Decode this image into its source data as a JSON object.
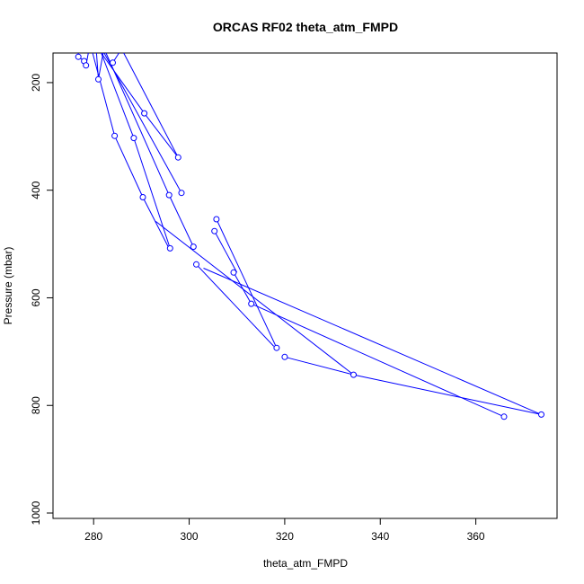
{
  "chart_data": {
    "type": "line",
    "title": "ORCAS RF02 theta_atm_FMPD",
    "xlabel": "theta_atm_FMPD",
    "ylabel": "Pressure (mbar)",
    "xlim": [
      271.5,
      377
    ],
    "ylim": [
      1010,
      145
    ],
    "y_reversed": true,
    "x_ticks": [
      280,
      300,
      320,
      340,
      360
    ],
    "y_ticks": [
      200,
      400,
      600,
      800,
      1000
    ],
    "grid": false,
    "legend": "none",
    "series_color": "#0000ff",
    "points": [
      {
        "x": 276.8,
        "y": 152
      },
      {
        "x": 278.0,
        "y": 160
      },
      {
        "x": 278.4,
        "y": 168
      },
      {
        "x": 281.0,
        "y": 194
      },
      {
        "x": 284.0,
        "y": 163
      },
      {
        "x": 290.6,
        "y": 257
      },
      {
        "x": 297.7,
        "y": 339
      },
      {
        "x": 288.4,
        "y": 303
      },
      {
        "x": 284.4,
        "y": 299
      },
      {
        "x": 290.3,
        "y": 413
      },
      {
        "x": 295.8,
        "y": 409
      },
      {
        "x": 298.4,
        "y": 405
      },
      {
        "x": 305.7,
        "y": 454
      },
      {
        "x": 305.3,
        "y": 476
      },
      {
        "x": 300.9,
        "y": 505
      },
      {
        "x": 296.0,
        "y": 508
      },
      {
        "x": 301.5,
        "y": 538
      },
      {
        "x": 309.3,
        "y": 553
      },
      {
        "x": 313.0,
        "y": 611
      },
      {
        "x": 318.3,
        "y": 693
      },
      {
        "x": 320.0,
        "y": 710
      },
      {
        "x": 334.4,
        "y": 743
      },
      {
        "x": 365.9,
        "y": 821
      },
      {
        "x": 373.7,
        "y": 817
      }
    ],
    "segments": [
      {
        "from": [
          276.8,
          145
        ],
        "to": [
          276.8,
          152
        ]
      },
      {
        "from": [
          276.8,
          152
        ],
        "to": [
          278.0,
          160
        ]
      },
      {
        "from": [
          278.0,
          160
        ],
        "to": [
          278.4,
          168
        ]
      },
      {
        "from": [
          278.4,
          168
        ],
        "to": [
          278.9,
          145
        ]
      },
      {
        "from": [
          280.6,
          145
        ],
        "to": [
          281.0,
          194
        ]
      },
      {
        "from": [
          281.0,
          194
        ],
        "to": [
          282.0,
          145
        ]
      },
      {
        "from": [
          284.0,
          163
        ],
        "to": [
          285.3,
          145
        ]
      },
      {
        "from": [
          281.6,
          145
        ],
        "to": [
          288.4,
          303
        ]
      },
      {
        "from": [
          288.4,
          303
        ],
        "to": [
          296.0,
          508
        ]
      },
      {
        "from": [
          284.4,
          299
        ],
        "to": [
          279.8,
          145
        ]
      },
      {
        "from": [
          284.4,
          299
        ],
        "to": [
          290.3,
          413
        ]
      },
      {
        "from": [
          290.3,
          413
        ],
        "to": [
          295.6,
          505
        ]
      },
      {
        "from": [
          290.6,
          257
        ],
        "to": [
          281.6,
          145
        ]
      },
      {
        "from": [
          290.6,
          257
        ],
        "to": [
          297.7,
          339
        ]
      },
      {
        "from": [
          297.7,
          339
        ],
        "to": [
          286.3,
          145
        ]
      },
      {
        "from": [
          282.6,
          145
        ],
        "to": [
          295.8,
          409
        ]
      },
      {
        "from": [
          295.8,
          409
        ],
        "to": [
          300.9,
          505
        ]
      },
      {
        "from": [
          298.4,
          405
        ],
        "to": [
          282.2,
          145
        ]
      },
      {
        "from": [
          305.7,
          454
        ],
        "to": [
          318.3,
          693
        ]
      },
      {
        "from": [
          305.3,
          476
        ],
        "to": [
          310.0,
          553
        ]
      },
      {
        "from": [
          309.3,
          553
        ],
        "to": [
          313.0,
          611
        ]
      },
      {
        "from": [
          301.5,
          538
        ],
        "to": [
          317.7,
          690
        ]
      },
      {
        "from": [
          293.0,
          458
        ],
        "to": [
          334.4,
          743
        ]
      },
      {
        "from": [
          313.0,
          611
        ],
        "to": [
          365.9,
          821
        ]
      },
      {
        "from": [
          303.0,
          545
        ],
        "to": [
          373.7,
          817
        ]
      },
      {
        "from": [
          320.0,
          710
        ],
        "to": [
          334.4,
          743
        ]
      },
      {
        "from": [
          334.4,
          743
        ],
        "to": [
          373.7,
          817
        ]
      }
    ]
  }
}
